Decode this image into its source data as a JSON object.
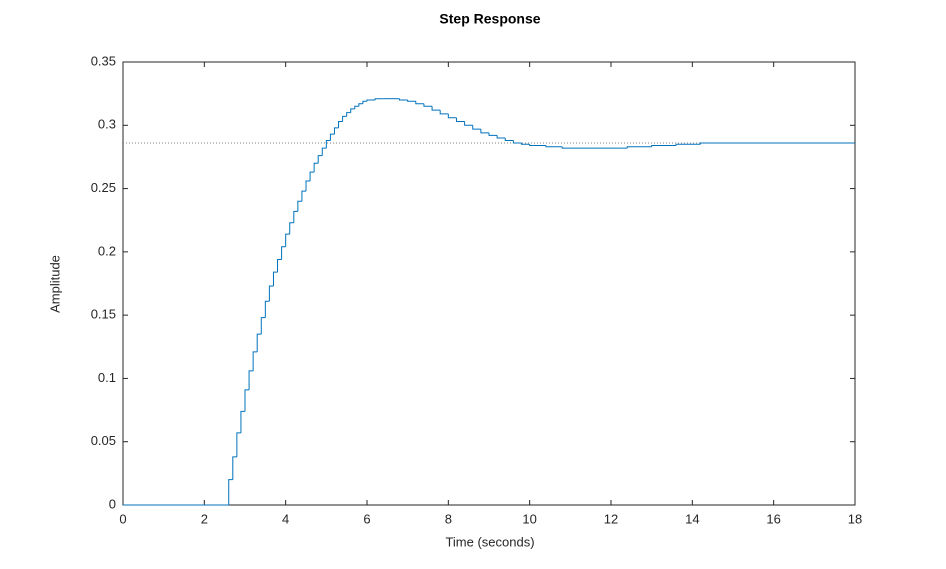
{
  "chart_data": {
    "type": "stairs",
    "title": "Step Response",
    "x_label": "Time (seconds)",
    "y_label": "Amplitude",
    "x": [
      0,
      2.6,
      2.7,
      2.8,
      2.9,
      3.0,
      3.1,
      3.2,
      3.3,
      3.4,
      3.5,
      3.6,
      3.7,
      3.8,
      3.9,
      4.0,
      4.1,
      4.2,
      4.3,
      4.4,
      4.5,
      4.6,
      4.7,
      4.8,
      4.9,
      5.0,
      5.1,
      5.2,
      5.3,
      5.4,
      5.5,
      5.6,
      5.7,
      5.8,
      5.9,
      6.0,
      6.2,
      6.4,
      6.6,
      6.8,
      7.0,
      7.2,
      7.4,
      7.6,
      7.8,
      8.0,
      8.2,
      8.4,
      8.6,
      8.8,
      9.0,
      9.2,
      9.4,
      9.6,
      9.8,
      10.0,
      10.4,
      10.8,
      12.0,
      12.4,
      13.0,
      13.6,
      14.2,
      18
    ],
    "values": [
      0,
      0.02,
      0.038,
      0.057,
      0.074,
      0.091,
      0.106,
      0.121,
      0.135,
      0.148,
      0.161,
      0.173,
      0.184,
      0.194,
      0.204,
      0.214,
      0.223,
      0.232,
      0.24,
      0.248,
      0.256,
      0.263,
      0.27,
      0.276,
      0.282,
      0.288,
      0.293,
      0.298,
      0.303,
      0.307,
      0.31,
      0.313,
      0.315,
      0.317,
      0.319,
      0.32,
      0.321,
      0.321,
      0.321,
      0.32,
      0.319,
      0.317,
      0.315,
      0.312,
      0.309,
      0.306,
      0.303,
      0.3,
      0.297,
      0.294,
      0.292,
      0.29,
      0.288,
      0.286,
      0.285,
      0.284,
      0.283,
      0.282,
      0.282,
      0.283,
      0.284,
      0.285,
      0.286,
      0.286
    ],
    "color": "#0072bd",
    "final_value": 0.286,
    "final_value_color": "#7f7f7f",
    "xlim": [
      0,
      18
    ],
    "xticks": [
      0,
      2,
      4,
      6,
      8,
      10,
      12,
      14,
      16,
      18
    ],
    "ylim": [
      0,
      0.35
    ],
    "yticks": [
      0,
      0.05,
      0.1,
      0.15,
      0.2,
      0.25,
      0.3,
      0.35
    ]
  }
}
